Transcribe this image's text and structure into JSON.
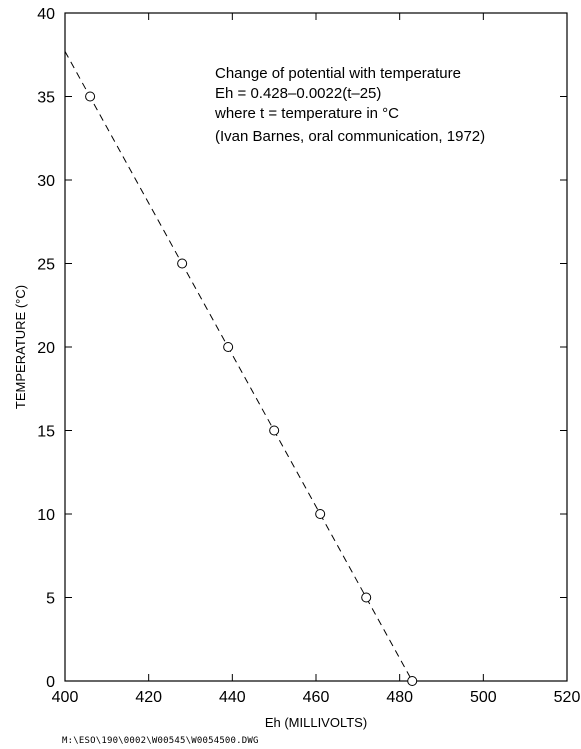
{
  "chart_data": {
    "type": "scatter",
    "xlabel": "Eh (MILLIVOLTS)",
    "ylabel": "TEMPERATURE (°C)",
    "xlim": [
      400,
      520
    ],
    "ylim": [
      0,
      40
    ],
    "x_ticks": [
      400,
      420,
      440,
      460,
      480,
      500,
      520
    ],
    "y_ticks": [
      0,
      5,
      10,
      15,
      20,
      25,
      30,
      35,
      40
    ],
    "grid": false,
    "points": {
      "x": [
        406,
        428,
        439,
        450,
        461,
        472,
        483
      ],
      "y": [
        35,
        25,
        20,
        15,
        10,
        5,
        0
      ]
    },
    "fit_line": {
      "style": "dashed",
      "x": [
        400,
        483
      ],
      "y": [
        37.7,
        0
      ]
    },
    "annotations": [
      "Change of potential with temperature",
      "Eh = 0.428–0.0022(t–25)",
      "where t = temperature in °C",
      "(Ivan Barnes, oral communication, 1972)"
    ]
  },
  "footer_path": "M:\\ESO\\190\\0002\\W00545\\W0054500.DWG"
}
